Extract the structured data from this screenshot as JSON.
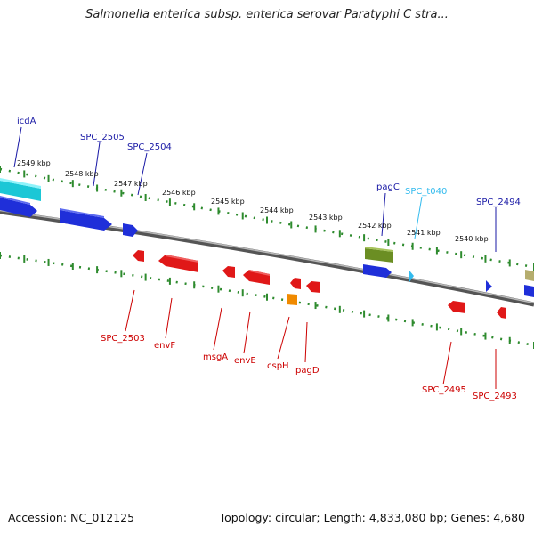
{
  "title": "Salmonella enterica subsp. enterica serovar Paratyphi C stra...",
  "footer": {
    "accession": "Accession: NC_012125",
    "summary": "Topology: circular; Length: 4,833,080 bp; Genes: 4,680"
  },
  "colors": {
    "forward_label": "#1a1aa6",
    "reverse_label": "#cc0000",
    "trna_label": "#33bbee",
    "backbone": "#7a7a7a",
    "tick": "#2e8b2e"
  },
  "scale": {
    "ticks": [
      {
        "kbp": 2549,
        "label": "2549 kbp"
      },
      {
        "kbp": 2548,
        "label": "2548 kbp"
      },
      {
        "kbp": 2547,
        "label": "2547 kbp"
      },
      {
        "kbp": 2546,
        "label": "2546 kbp"
      },
      {
        "kbp": 2545,
        "label": "2545 kbp"
      },
      {
        "kbp": 2544,
        "label": "2544 kbp"
      },
      {
        "kbp": 2543,
        "label": "2543 kbp"
      },
      {
        "kbp": 2542,
        "label": "2542 kbp"
      },
      {
        "kbp": 2541,
        "label": "2541 kbp"
      },
      {
        "kbp": 2540,
        "label": "2540 kbp"
      }
    ]
  },
  "genes": [
    {
      "name": "icdA",
      "strand": "forward",
      "color": "#22dde8"
    },
    {
      "name": "SPC_2505",
      "strand": "forward",
      "color": "#1f2fd9"
    },
    {
      "name": "SPC_2504",
      "strand": "forward",
      "color": "#1f2fd9"
    },
    {
      "name": "pagC",
      "strand": "forward",
      "color": "#6b8e23"
    },
    {
      "name": "SPC_t040",
      "strand": "forward",
      "color": "#33bbee"
    },
    {
      "name": "SPC_2494",
      "strand": "forward",
      "color": "#1f2fd9"
    },
    {
      "name": "SPC_2503",
      "strand": "reverse",
      "color": "#e01818"
    },
    {
      "name": "envF",
      "strand": "reverse",
      "color": "#e01818"
    },
    {
      "name": "msgA",
      "strand": "reverse",
      "color": "#e01818"
    },
    {
      "name": "envE",
      "strand": "reverse",
      "color": "#e01818"
    },
    {
      "name": "cspH",
      "strand": "reverse",
      "color": "#e01818"
    },
    {
      "name": "pagD",
      "strand": "reverse",
      "color": "#e01818"
    },
    {
      "name": "SPC_2495",
      "strand": "reverse",
      "color": "#e01818"
    },
    {
      "name": "SPC_2493",
      "strand": "reverse",
      "color": "#e01818"
    }
  ]
}
